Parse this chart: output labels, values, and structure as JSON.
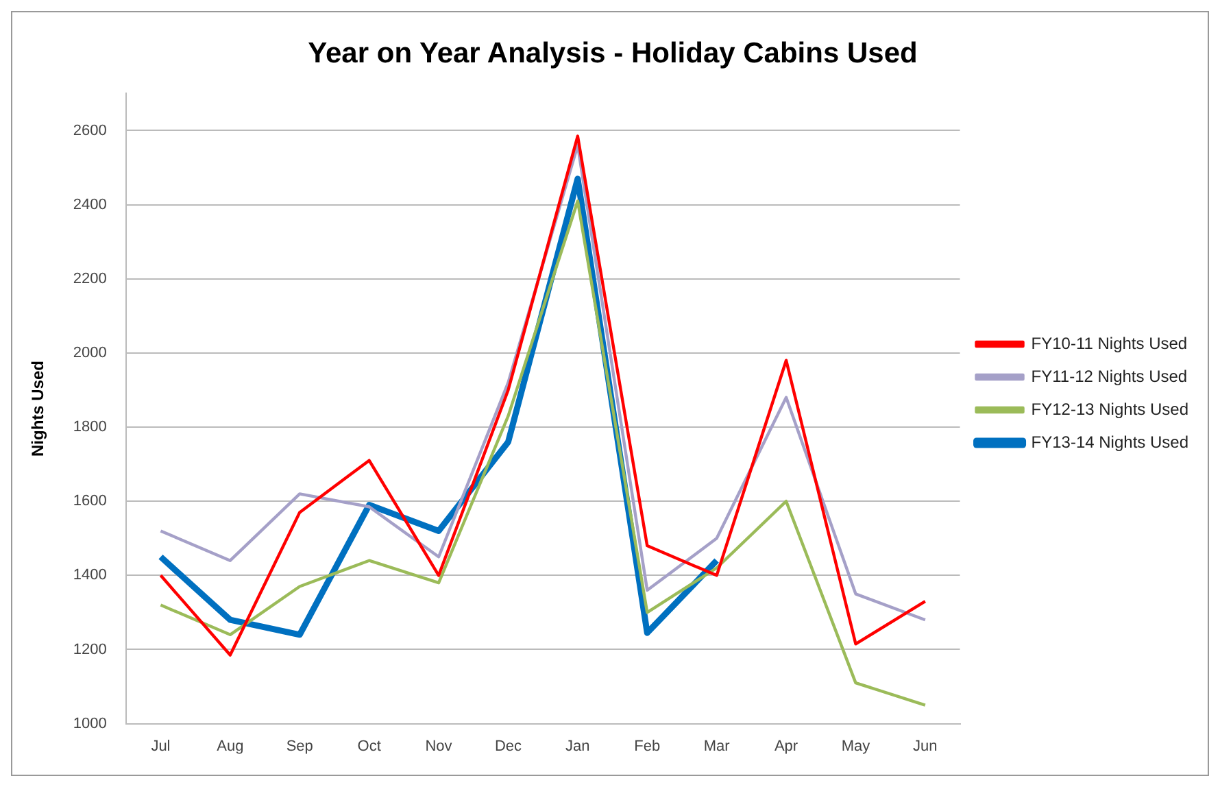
{
  "chart_data": {
    "type": "line",
    "title": "Year on Year Analysis - Holiday Cabins Used",
    "ylabel": "Nights Used",
    "categories": [
      "Jul",
      "Aug",
      "Sep",
      "Oct",
      "Nov",
      "Dec",
      "Jan",
      "Feb",
      "Mar",
      "Apr",
      "May",
      "Jun"
    ],
    "series": [
      {
        "name": "FY10-11 Nights Used",
        "color": "#ff0000",
        "values": [
          1400,
          1185,
          1570,
          1710,
          1400,
          1900,
          2585,
          1480,
          1400,
          1980,
          1215,
          1330
        ]
      },
      {
        "name": "FY11-12 Nights Used",
        "color": "#a5a0c8",
        "values": [
          1520,
          1440,
          1620,
          1585,
          1450,
          1920,
          2560,
          1360,
          1500,
          1880,
          1350,
          1280
        ]
      },
      {
        "name": "FY12-13 Nights Used",
        "color": "#9bbb59",
        "values": [
          1320,
          1240,
          1370,
          1440,
          1380,
          1830,
          2410,
          1300,
          1420,
          1600,
          1110,
          1050
        ]
      },
      {
        "name": "FY13-14 Nights Used",
        "color": "#0070c0",
        "values": [
          1450,
          1280,
          1240,
          1590,
          1520,
          1760,
          2470,
          1245,
          1440,
          null,
          null,
          null
        ]
      }
    ],
    "ylim": [
      1000,
      2700
    ],
    "yticks": [
      1000,
      1200,
      1400,
      1600,
      1800,
      2000,
      2200,
      2400,
      2600
    ],
    "grid": "y",
    "legend": "right",
    "marker": "none",
    "line_style": "solid"
  }
}
